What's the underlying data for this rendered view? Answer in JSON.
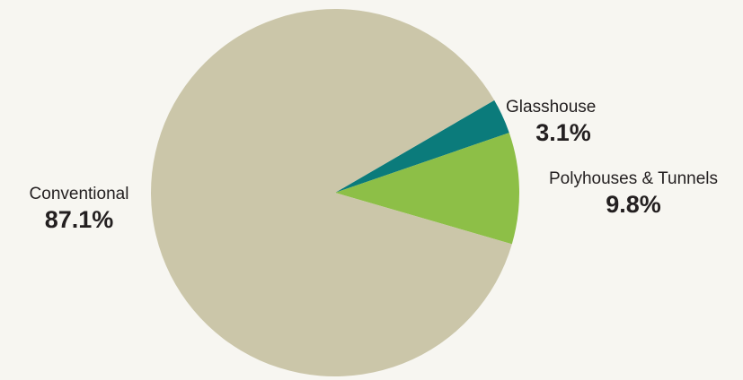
{
  "chart_data": {
    "type": "pie",
    "categories": [
      "Glasshouse",
      "Polyhouses & Tunnels",
      "Conventional"
    ],
    "values": [
      3.1,
      9.8,
      87.1
    ],
    "value_labels": [
      "3.1%",
      "9.8%",
      "87.1%"
    ],
    "colors": [
      "#0b7b7b",
      "#8dbf47",
      "#cbc6a9"
    ]
  }
}
